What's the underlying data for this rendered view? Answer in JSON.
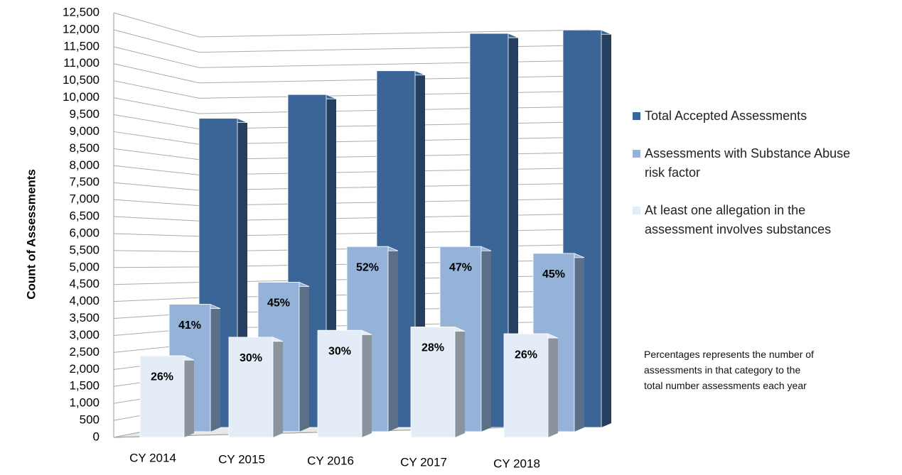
{
  "chart_data": {
    "type": "bar3d",
    "y_axis_label": "Count of Assessments",
    "categories": [
      "CY 2014",
      "CY 2015",
      "CY 2016",
      "CY 2017",
      "CY 2018"
    ],
    "series": [
      {
        "name": "Total Accepted Assessments",
        "color": "#3b6597",
        "side_color": "#243f5f",
        "values": [
          9100,
          9800,
          10500,
          11600,
          11700
        ]
      },
      {
        "name": "Assessments with Substance Abuse risk factor",
        "color": "#95b3d8",
        "side_color": "#5b6f89",
        "values": [
          3750,
          4400,
          5450,
          5450,
          5250
        ],
        "labels": [
          "41%",
          "45%",
          "52%",
          "47%",
          "45%"
        ]
      },
      {
        "name": "At least one allegation in the assessment involves substances",
        "color": "#e4ecf7",
        "side_color": "#8b939d",
        "values": [
          2400,
          2950,
          3150,
          3250,
          3050
        ],
        "labels": [
          "26%",
          "30%",
          "30%",
          "28%",
          "26%"
        ]
      }
    ],
    "ylim": [
      0,
      12500
    ],
    "yticks": [
      0,
      500,
      {
        "value": 1000,
        "label": "1,000"
      },
      {
        "value": 1500,
        "label": "1,500"
      },
      {
        "value": 2000,
        "label": "2,000"
      },
      {
        "value": 2500,
        "label": "2,500"
      },
      {
        "value": 3000,
        "label": "3,000"
      },
      {
        "value": 3500,
        "label": "3,500"
      },
      {
        "value": 4000,
        "label": "4,000"
      },
      {
        "value": 4500,
        "label": "4,500"
      },
      {
        "value": 5000,
        "label": "5,000"
      },
      {
        "value": 5500,
        "label": "5,500"
      },
      {
        "value": 6000,
        "label": "6,000"
      },
      {
        "value": 6500,
        "label": "6,500"
      },
      {
        "value": 7000,
        "label": "7,000"
      },
      {
        "value": 7500,
        "label": "7,500"
      },
      {
        "value": 8000,
        "label": "8,000"
      },
      {
        "value": 8500,
        "label": "8,500"
      },
      {
        "value": 9000,
        "label": "9,000"
      },
      {
        "value": 9500,
        "label": "9,500"
      },
      {
        "value": 10000,
        "label": "10,000"
      },
      {
        "value": 10500,
        "label": "10,500"
      },
      {
        "value": 11000,
        "label": "11,000"
      },
      {
        "value": 11500,
        "label": "11,500"
      },
      {
        "value": 12000,
        "label": "12,000"
      },
      {
        "value": 12500,
        "label": "12,500"
      }
    ],
    "grid": true,
    "note": [
      "Percentages represents the number of",
      "assessments in that category to the",
      "total number assessments each year"
    ]
  }
}
